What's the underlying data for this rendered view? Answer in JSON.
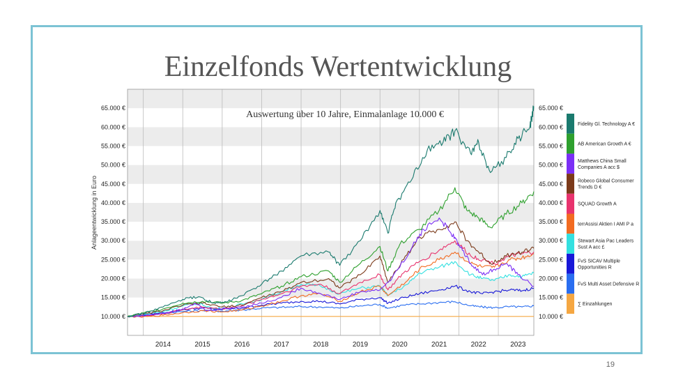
{
  "slide": {
    "title": "Einzelfonds Wertentwicklung",
    "page_number": "19",
    "frame_color": "#7cc3d4"
  },
  "chart_data": {
    "type": "line",
    "subtitle": "Auswertung über 10 Jahre, Einmalanlage 10.000 €",
    "ylabel": "Anlageentwicklung in Euro",
    "ylim": [
      5000,
      70000
    ],
    "y_ticks": [
      "10.000 €",
      "15.000 €",
      "20.000 €",
      "25.000 €",
      "30.000 €",
      "35.000 €",
      "40.000 €",
      "45.000 €",
      "50.000 €",
      "55.000 €",
      "60.000 €",
      "65.000 €"
    ],
    "y_tick_values": [
      10000,
      15000,
      20000,
      25000,
      30000,
      35000,
      40000,
      45000,
      50000,
      55000,
      60000,
      65000
    ],
    "xlim": [
      2013.6,
      2023.9
    ],
    "x_tick_labels": [
      "2014",
      "2015",
      "2016",
      "2017",
      "2018",
      "2019",
      "2020",
      "2021",
      "2022",
      "2023"
    ],
    "grid": true,
    "legend_position": "right",
    "series": [
      {
        "name": "Fidelity Gl. Technology A €",
        "color": "#1a7a6e",
        "x": [
          2013.6,
          2014.0,
          2014.5,
          2015.0,
          2015.4,
          2015.8,
          2016.1,
          2016.5,
          2017.0,
          2017.5,
          2018.0,
          2018.7,
          2018.98,
          2019.5,
          2020.0,
          2020.2,
          2020.4,
          2020.8,
          2021.2,
          2021.6,
          2021.9,
          2022.3,
          2022.5,
          2022.8,
          2023.2,
          2023.5,
          2023.8,
          2023.9
        ],
        "values": [
          10000,
          10800,
          12500,
          14500,
          15200,
          13500,
          13800,
          15500,
          18500,
          22000,
          26000,
          27000,
          23500,
          30000,
          38000,
          32000,
          40000,
          46000,
          54000,
          56000,
          59000,
          53000,
          56000,
          48000,
          52000,
          57000,
          60000,
          65500
        ]
      },
      {
        "name": "AB American Growth A €",
        "color": "#2ea02e",
        "x": [
          2013.6,
          2014.0,
          2014.5,
          2015.0,
          2015.5,
          2016.0,
          2016.5,
          2017.0,
          2017.5,
          2018.0,
          2018.7,
          2018.98,
          2019.5,
          2020.0,
          2020.2,
          2020.5,
          2021.0,
          2021.5,
          2021.9,
          2022.2,
          2022.5,
          2022.8,
          2023.2,
          2023.6,
          2023.9
        ],
        "values": [
          10000,
          10900,
          12000,
          13500,
          14000,
          13500,
          14200,
          16000,
          18000,
          20500,
          22000,
          19000,
          24000,
          28500,
          22000,
          29000,
          33000,
          38000,
          44000,
          38000,
          36000,
          33500,
          37000,
          40000,
          43000
        ]
      },
      {
        "name": "Matthews China Small Companies A acc $",
        "color": "#7b2ff5",
        "x": [
          2013.6,
          2014.0,
          2014.5,
          2015.0,
          2015.3,
          2015.6,
          2016.0,
          2016.5,
          2017.0,
          2017.5,
          2018.0,
          2018.5,
          2018.98,
          2019.5,
          2020.0,
          2020.3,
          2020.8,
          2021.1,
          2021.5,
          2021.8,
          2022.0,
          2022.3,
          2022.6,
          2022.9,
          2023.2,
          2023.5,
          2023.9
        ],
        "values": [
          10000,
          10200,
          10800,
          12000,
          13500,
          11500,
          12000,
          12500,
          13500,
          15000,
          17500,
          16000,
          14500,
          16500,
          17000,
          20000,
          28000,
          33000,
          36000,
          32000,
          29000,
          24000,
          21000,
          22500,
          24000,
          21000,
          18000
        ]
      },
      {
        "name": "Robeco Global Consumer Trends D €",
        "color": "#7b3a1a",
        "x": [
          2013.6,
          2014.0,
          2014.5,
          2015.0,
          2015.5,
          2016.0,
          2016.5,
          2017.0,
          2017.5,
          2018.0,
          2018.7,
          2018.98,
          2019.5,
          2020.0,
          2020.2,
          2020.6,
          2021.0,
          2021.5,
          2021.9,
          2022.2,
          2022.5,
          2022.8,
          2023.2,
          2023.6,
          2023.9
        ],
        "values": [
          10000,
          10600,
          11500,
          13000,
          13500,
          12500,
          13000,
          15000,
          16500,
          19000,
          20000,
          17500,
          21000,
          26000,
          19000,
          25000,
          31000,
          33000,
          35000,
          30000,
          27000,
          24000,
          26000,
          27000,
          28000
        ]
      },
      {
        "name": "SQUAD Growth A",
        "color": "#e8336e",
        "x": [
          2013.6,
          2014.0,
          2014.5,
          2015.0,
          2015.5,
          2016.0,
          2016.5,
          2017.0,
          2017.5,
          2018.0,
          2018.5,
          2018.98,
          2019.5,
          2020.0,
          2020.2,
          2020.6,
          2021.0,
          2021.5,
          2021.9,
          2022.3,
          2022.6,
          2022.9,
          2023.3,
          2023.6,
          2023.9
        ],
        "values": [
          10000,
          10100,
          10700,
          11800,
          12500,
          12000,
          12800,
          14500,
          16000,
          18000,
          18500,
          16000,
          19000,
          21000,
          17000,
          21500,
          24500,
          27500,
          30000,
          26000,
          25000,
          24000,
          26000,
          26500,
          27000
        ]
      },
      {
        "name": "terrAssisi Aktien I AMI P a",
        "color": "#f26b21",
        "x": [
          2013.6,
          2014.0,
          2014.5,
          2015.0,
          2015.5,
          2016.0,
          2016.5,
          2017.0,
          2017.5,
          2018.0,
          2018.5,
          2018.98,
          2019.5,
          2020.0,
          2020.2,
          2020.7,
          2021.0,
          2021.5,
          2021.9,
          2022.3,
          2022.6,
          2022.9,
          2023.3,
          2023.6,
          2023.9
        ],
        "values": [
          10000,
          9900,
          10300,
          11000,
          11500,
          11200,
          11700,
          12800,
          14000,
          15500,
          16000,
          14000,
          16500,
          18000,
          15500,
          19500,
          22500,
          25000,
          27000,
          24000,
          23000,
          23000,
          25000,
          25500,
          26500
        ]
      },
      {
        "name": "Stewart Asia Pac Leaders Sust A acc £",
        "color": "#33e0e0",
        "x": [
          2013.6,
          2014.0,
          2014.5,
          2015.0,
          2015.4,
          2015.8,
          2016.2,
          2016.6,
          2017.0,
          2017.5,
          2018.0,
          2018.5,
          2018.98,
          2019.5,
          2020.0,
          2020.2,
          2020.7,
          2021.0,
          2021.5,
          2021.9,
          2022.3,
          2022.6,
          2022.9,
          2023.3,
          2023.6,
          2023.9
        ],
        "values": [
          10000,
          10500,
          11300,
          12800,
          13500,
          12000,
          12500,
          13500,
          14500,
          16500,
          18500,
          18000,
          16000,
          17500,
          18000,
          15500,
          18500,
          21500,
          23000,
          24500,
          21000,
          20000,
          19500,
          21000,
          20500,
          21500
        ]
      },
      {
        "name": "FvS SICAV Multiple Opportunities R",
        "color": "#1818d8",
        "x": [
          2013.6,
          2014.0,
          2014.5,
          2015.0,
          2015.5,
          2016.0,
          2016.5,
          2017.0,
          2017.5,
          2018.0,
          2018.5,
          2018.98,
          2019.5,
          2020.0,
          2020.2,
          2020.6,
          2021.0,
          2021.5,
          2021.9,
          2022.3,
          2022.6,
          2022.9,
          2023.3,
          2023.6,
          2023.9
        ],
        "values": [
          10000,
          10400,
          11000,
          11800,
          12200,
          11800,
          12200,
          13000,
          13500,
          14000,
          14000,
          13300,
          14500,
          15000,
          13500,
          15000,
          16000,
          17000,
          18000,
          16500,
          16000,
          16500,
          17000,
          16800,
          17500
        ]
      },
      {
        "name": "FvS Multi Asset Defensive R",
        "color": "#2a6ef0",
        "x": [
          2013.6,
          2014.0,
          2014.5,
          2015.0,
          2015.5,
          2016.0,
          2016.5,
          2017.0,
          2017.5,
          2018.0,
          2018.5,
          2018.98,
          2019.5,
          2020.0,
          2020.2,
          2020.6,
          2021.0,
          2021.5,
          2021.9,
          2022.3,
          2022.6,
          2022.9,
          2023.3,
          2023.6,
          2023.9
        ],
        "values": [
          10000,
          10300,
          10800,
          11300,
          11600,
          11400,
          11700,
          12200,
          12400,
          12600,
          12500,
          12200,
          12800,
          13200,
          12200,
          13000,
          13300,
          13700,
          13900,
          12800,
          12500,
          12300,
          12600,
          12500,
          12800
        ]
      },
      {
        "name": "∑ Einzahlungen",
        "color": "#f5a742",
        "x": [
          2013.6,
          2023.9
        ],
        "values": [
          10000,
          10000
        ]
      }
    ]
  }
}
